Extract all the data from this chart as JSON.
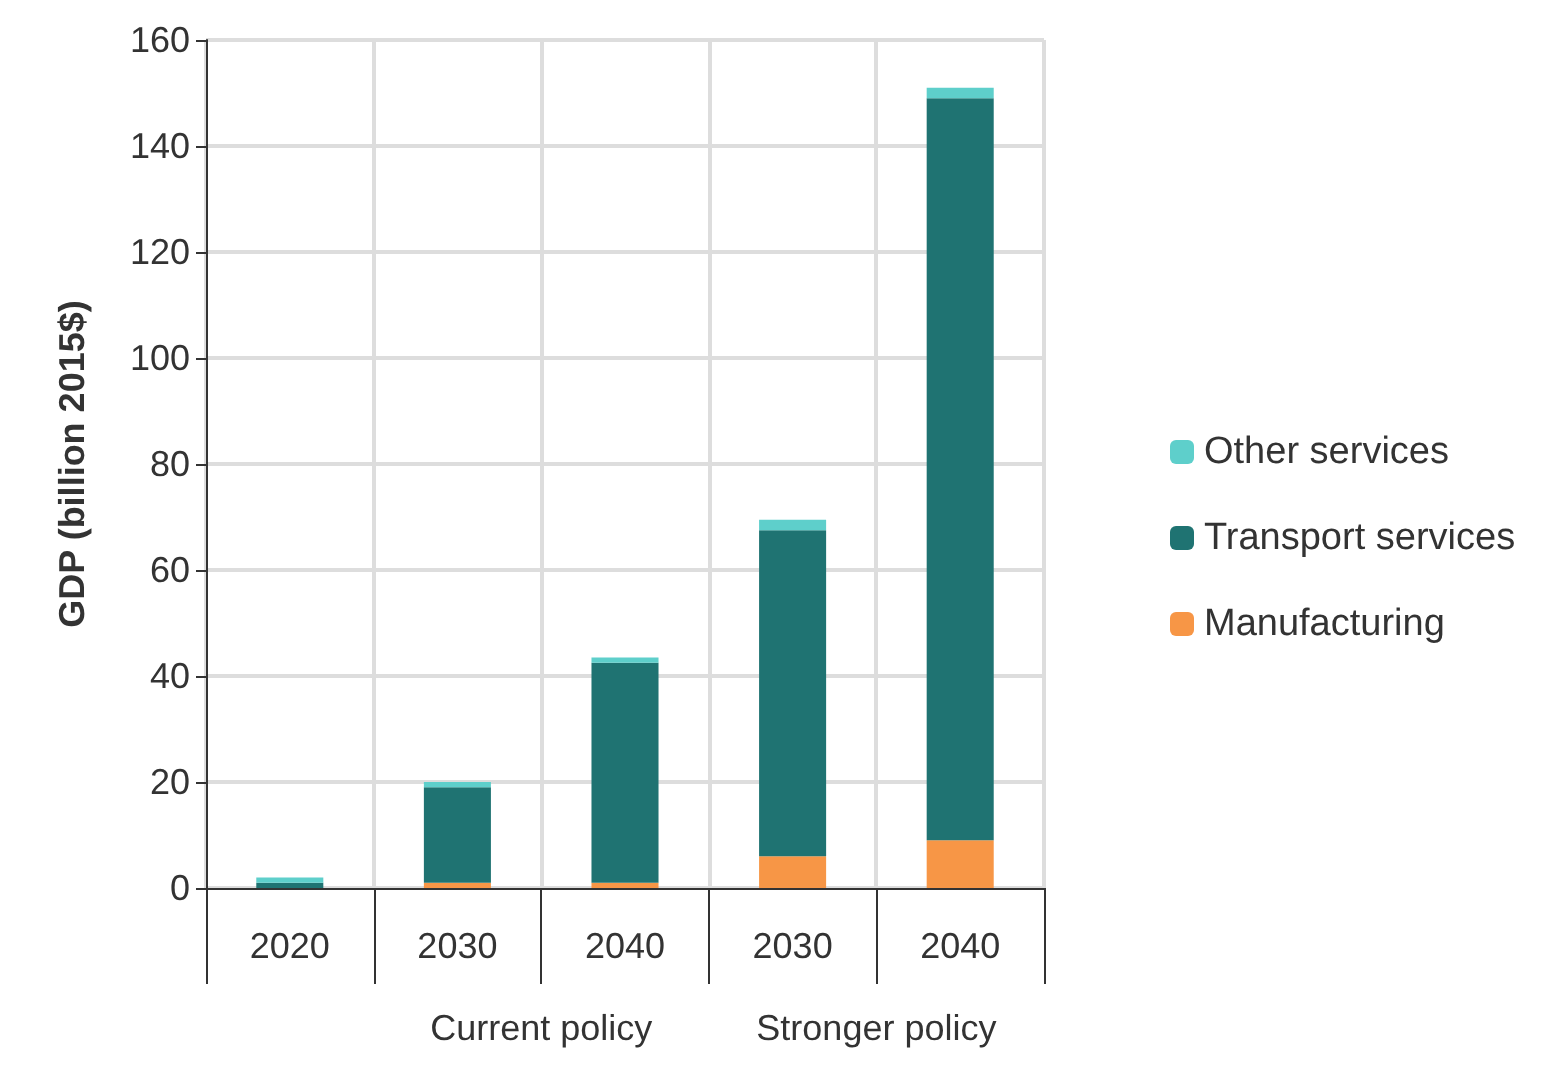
{
  "chart_data": {
    "type": "bar",
    "stacked": true,
    "ylabel": "GDP (billion 2015$)",
    "categories": [
      "2020",
      "2030",
      "2040",
      "2030",
      "2040"
    ],
    "series": [
      {
        "name": "Manufacturing",
        "color": "#f79646",
        "values": [
          0,
          1,
          1,
          6,
          9
        ]
      },
      {
        "name": "Transport services",
        "color": "#1f7372",
        "values": [
          1,
          18,
          41.5,
          61.5,
          140
        ]
      },
      {
        "name": "Other services",
        "color": "#5ecfcb",
        "values": [
          1,
          1,
          1,
          2,
          2
        ]
      }
    ],
    "ylim": [
      0,
      160
    ],
    "yticks": [
      0,
      20,
      40,
      60,
      80,
      100,
      120,
      140,
      160
    ],
    "grid": true,
    "legend": "right",
    "annotations": [
      "Current policy",
      "Stronger policy"
    ]
  }
}
